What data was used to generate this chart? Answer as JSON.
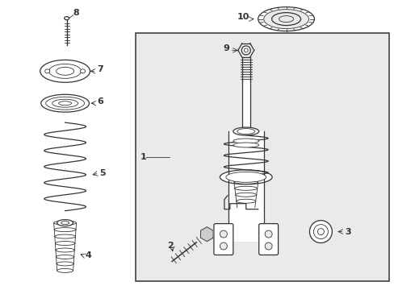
{
  "bg_color": "#ffffff",
  "box_bg": "#e8eaec",
  "line_color": "#333333",
  "label_color": "#000000",
  "figsize": [
    4.89,
    3.6
  ],
  "dpi": 100
}
